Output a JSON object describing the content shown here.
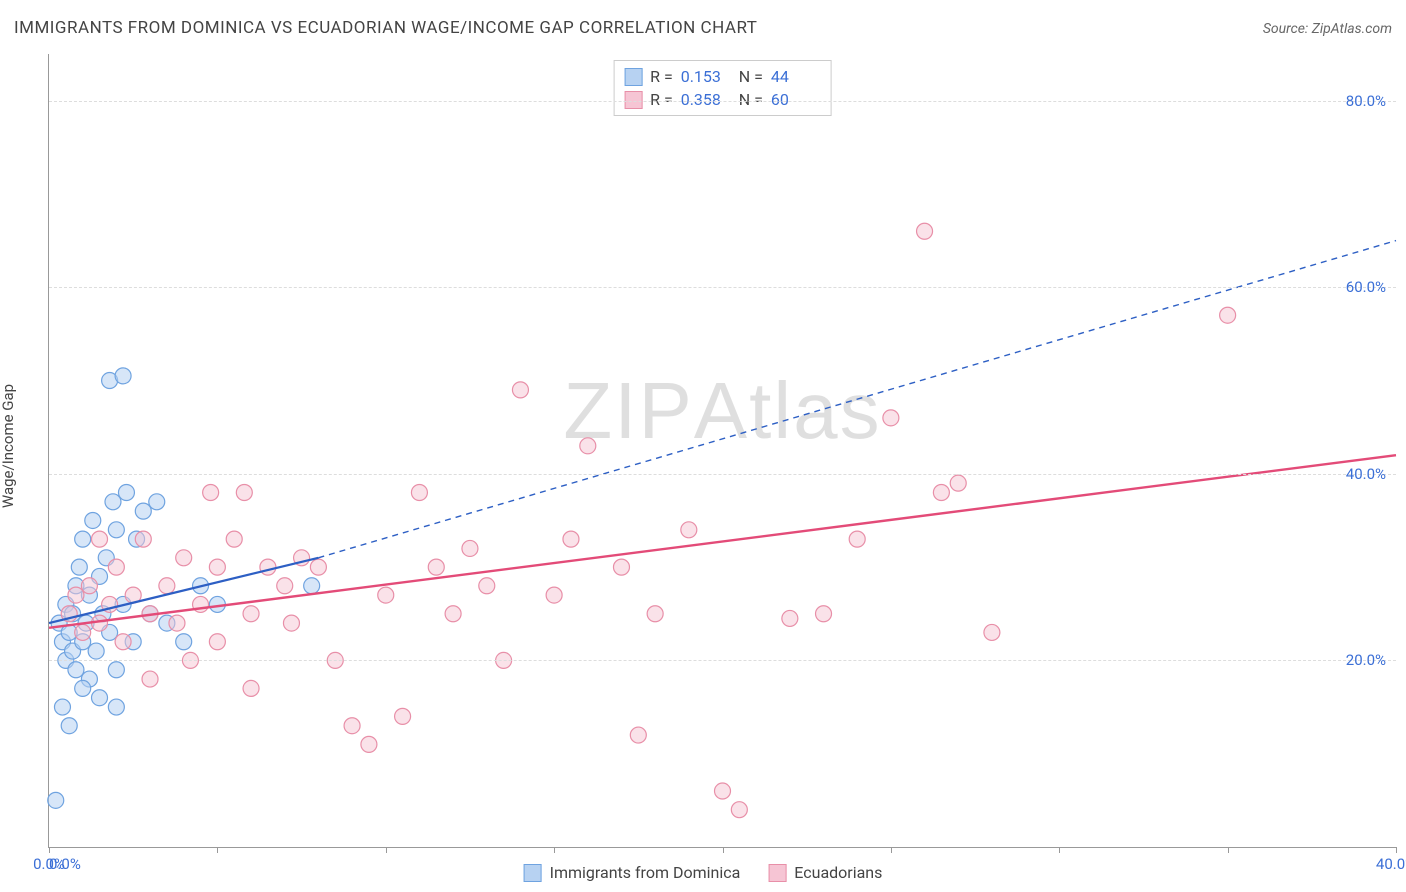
{
  "title": "IMMIGRANTS FROM DOMINICA VS ECUADORIAN WAGE/INCOME GAP CORRELATION CHART",
  "source_label": "Source:",
  "source_name": "ZipAtlas.com",
  "ylabel": "Wage/Income Gap",
  "watermark_a": "ZIP",
  "watermark_b": "Atlas",
  "chart": {
    "type": "scatter",
    "xlim": [
      0,
      40
    ],
    "ylim": [
      0,
      85
    ],
    "xticks": [
      0,
      20,
      40
    ],
    "xtick_labels": [
      "0.0%",
      "",
      "40.0%"
    ],
    "xtick_minors": [
      5,
      10,
      15,
      25,
      30,
      35
    ],
    "yticks": [
      20,
      40,
      60,
      80
    ],
    "ytick_labels": [
      "20.0%",
      "40.0%",
      "60.0%",
      "80.0%"
    ],
    "background_color": "#ffffff",
    "grid_color": "#dddddd",
    "axis_color": "#999999",
    "tick_label_color": "#3b6fd6",
    "marker_radius": 8,
    "marker_stroke_width": 1.2,
    "series": [
      {
        "name": "Immigrants from Dominica",
        "fill": "#b7d2f2",
        "stroke": "#6fa3e0",
        "fill_opacity": 0.55,
        "R": "0.153",
        "N": "44",
        "trend": {
          "x1": 0,
          "y1": 24,
          "x2": 8,
          "y2": 31,
          "dash_x2": 40,
          "dash_y2": 65,
          "stroke": "#2d5fc4",
          "width": 2.2
        },
        "points": [
          [
            0.3,
            24
          ],
          [
            0.4,
            22
          ],
          [
            0.5,
            26
          ],
          [
            0.5,
            20
          ],
          [
            0.6,
            23
          ],
          [
            0.7,
            25
          ],
          [
            0.7,
            21
          ],
          [
            0.8,
            28
          ],
          [
            0.8,
            19
          ],
          [
            0.9,
            30
          ],
          [
            1.0,
            22
          ],
          [
            1.0,
            33
          ],
          [
            1.1,
            24
          ],
          [
            1.2,
            27
          ],
          [
            1.2,
            18
          ],
          [
            1.3,
            35
          ],
          [
            1.4,
            21
          ],
          [
            1.5,
            29
          ],
          [
            1.5,
            16
          ],
          [
            1.6,
            25
          ],
          [
            1.7,
            31
          ],
          [
            1.8,
            23
          ],
          [
            1.9,
            37
          ],
          [
            2.0,
            34
          ],
          [
            2.0,
            19
          ],
          [
            2.2,
            26
          ],
          [
            2.3,
            38
          ],
          [
            2.5,
            22
          ],
          [
            2.6,
            33
          ],
          [
            2.8,
            36
          ],
          [
            3.0,
            25
          ],
          [
            3.2,
            37
          ],
          [
            0.4,
            15
          ],
          [
            0.6,
            13
          ],
          [
            1.8,
            50
          ],
          [
            2.2,
            50.5
          ],
          [
            1.0,
            17
          ],
          [
            0.2,
            5
          ],
          [
            3.5,
            24
          ],
          [
            4.5,
            28
          ],
          [
            5.0,
            26
          ],
          [
            7.8,
            28
          ],
          [
            4.0,
            22
          ],
          [
            2.0,
            15
          ]
        ]
      },
      {
        "name": "Ecuadorians",
        "fill": "#f6c5d4",
        "stroke": "#e88fa8",
        "fill_opacity": 0.5,
        "R": "0.358",
        "N": "60",
        "trend": {
          "x1": 0,
          "y1": 23.5,
          "x2": 40,
          "y2": 42,
          "stroke": "#e34b78",
          "width": 2.4
        },
        "points": [
          [
            0.6,
            25
          ],
          [
            0.8,
            27
          ],
          [
            1.0,
            23
          ],
          [
            1.2,
            28
          ],
          [
            1.5,
            24
          ],
          [
            1.5,
            33
          ],
          [
            1.8,
            26
          ],
          [
            2.0,
            30
          ],
          [
            2.2,
            22
          ],
          [
            2.5,
            27
          ],
          [
            2.8,
            33
          ],
          [
            3.0,
            25
          ],
          [
            3.0,
            18
          ],
          [
            3.5,
            28
          ],
          [
            3.8,
            24
          ],
          [
            4.0,
            31
          ],
          [
            4.2,
            20
          ],
          [
            4.5,
            26
          ],
          [
            4.8,
            38
          ],
          [
            5.0,
            30
          ],
          [
            5.0,
            22
          ],
          [
            5.5,
            33
          ],
          [
            5.8,
            38
          ],
          [
            6.0,
            25
          ],
          [
            6.5,
            30
          ],
          [
            7.0,
            28
          ],
          [
            7.2,
            24
          ],
          [
            7.5,
            31
          ],
          [
            8.0,
            30
          ],
          [
            8.5,
            20
          ],
          [
            9.0,
            13
          ],
          [
            9.5,
            11
          ],
          [
            10.0,
            27
          ],
          [
            11.0,
            38
          ],
          [
            11.5,
            30
          ],
          [
            12.0,
            25
          ],
          [
            12.5,
            32
          ],
          [
            13.0,
            28
          ],
          [
            13.5,
            20
          ],
          [
            14.0,
            49
          ],
          [
            15.0,
            27
          ],
          [
            15.5,
            33
          ],
          [
            16.0,
            43
          ],
          [
            17.0,
            30
          ],
          [
            17.5,
            12
          ],
          [
            18.0,
            25
          ],
          [
            19.0,
            34
          ],
          [
            20.0,
            6
          ],
          [
            20.5,
            4
          ],
          [
            22.0,
            24.5
          ],
          [
            23.0,
            25
          ],
          [
            24.0,
            33
          ],
          [
            25.0,
            46
          ],
          [
            26.0,
            66
          ],
          [
            26.5,
            38
          ],
          [
            27.0,
            39
          ],
          [
            28.0,
            23
          ],
          [
            35.0,
            57
          ],
          [
            6.0,
            17
          ],
          [
            10.5,
            14
          ]
        ]
      }
    ]
  },
  "stats_labels": {
    "R": "R =",
    "N": "N ="
  },
  "legend": {
    "items": [
      {
        "label": "Immigrants from Dominica",
        "fill": "#b7d2f2",
        "stroke": "#6fa3e0"
      },
      {
        "label": "Ecuadorians",
        "fill": "#f6c5d4",
        "stroke": "#e88fa8"
      }
    ]
  }
}
